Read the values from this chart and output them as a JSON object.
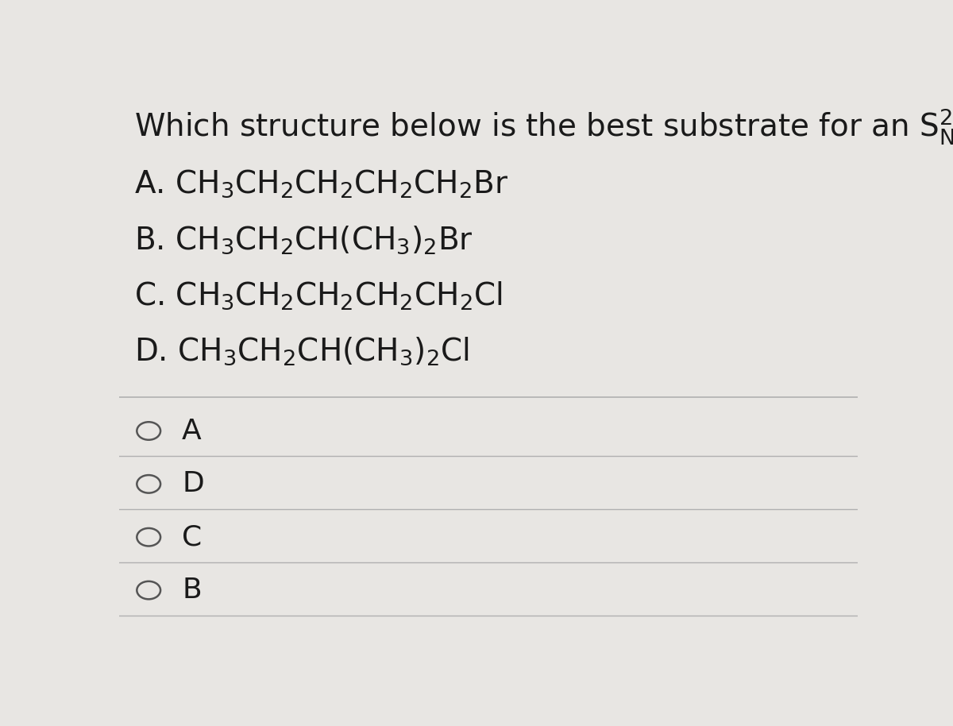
{
  "bg_color": "#e8e6e3",
  "answers": [
    "A",
    "D",
    "C",
    "B"
  ],
  "title_fontsize": 28,
  "option_fontsize": 28,
  "answer_fontsize": 26,
  "text_color": "#1a1a1a",
  "divider_color": "#b0b0b0",
  "circle_color": "#555555"
}
